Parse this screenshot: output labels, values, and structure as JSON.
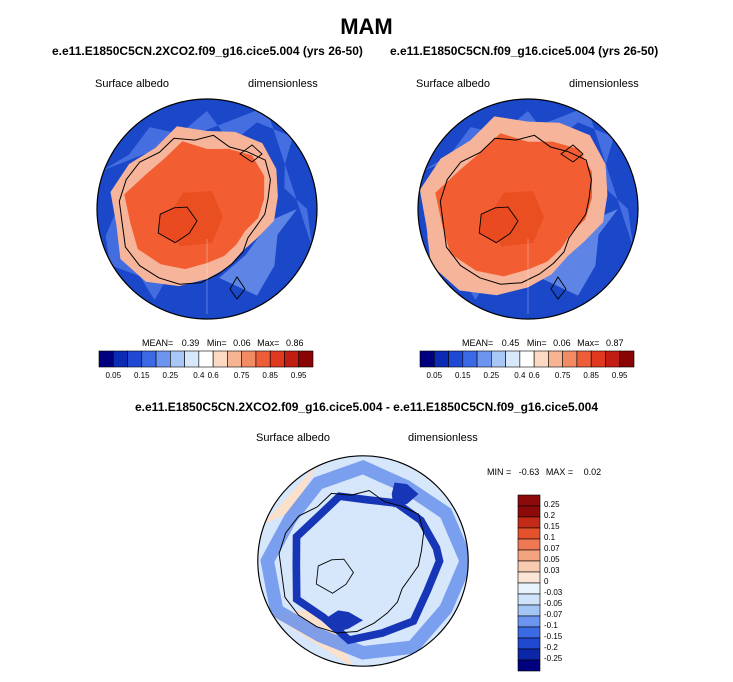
{
  "figure": {
    "title": "MAM",
    "diff_title": "e.e11.E1850C5CN.2XCO2.f09_g16.cice5.004 - e.e11.E1850C5CN.f09_g16.cice5.004"
  },
  "colors": {
    "hbar": [
      "#00007f",
      "#0b2bb5",
      "#1f49d5",
      "#3c6ae6",
      "#6d94ef",
      "#a8c6f6",
      "#d7e8fb",
      "#ffffff",
      "#fbd9c2",
      "#f7b493",
      "#f28b64",
      "#ec5d38",
      "#e0391f",
      "#c11d12",
      "#880405"
    ],
    "vbar": [
      "#00007f",
      "#0b27a8",
      "#1f47d0",
      "#3a6ae4",
      "#6b95ef",
      "#a4c6f5",
      "#cfe4fa",
      "#e8f2fd",
      "#fbe5d6",
      "#f8cbb1",
      "#f4a37f",
      "#ee7853",
      "#e4522c",
      "#c32a17",
      "#8c0a0a"
    ],
    "ocean": "#1b47c9",
    "ice": "#f25e32",
    "land_blue": "#4a73e3",
    "diff_bg": "#d6e6fb",
    "diff_dark": "#1636b7",
    "diff_mid": "#6a92ec",
    "diff_pos": "#fbe0cc"
  },
  "chart_data": [
    {
      "type": "heatmap",
      "panel": "left",
      "projection": "north-polar-stereographic",
      "title": "e.e11.E1850C5CN.2XCO2.f09_g16.cice5.004 (yrs 26-50)",
      "variable": "Surface albedo",
      "units": "dimensionless",
      "stats": {
        "mean_label": "MEAN=",
        "mean": "0.39",
        "min_label": "Min=",
        "min": "0.06",
        "max_label": "Max=",
        "max": "0.86"
      },
      "colorbar_ticks": [
        "0.05",
        "0.15",
        "0.25",
        "0.4",
        "0.6",
        "0.75",
        "0.85",
        "0.95"
      ]
    },
    {
      "type": "heatmap",
      "panel": "right",
      "projection": "north-polar-stereographic",
      "title": "e.e11.E1850C5CN.f09_g16.cice5.004 (yrs 26-50)",
      "variable": "Surface albedo",
      "units": "dimensionless",
      "stats": {
        "mean_label": "MEAN=",
        "mean": "0.45",
        "min_label": "Min=",
        "min": "0.06",
        "max_label": "Max=",
        "max": "0.87"
      },
      "colorbar_ticks": [
        "0.05",
        "0.15",
        "0.25",
        "0.4",
        "0.6",
        "0.75",
        "0.85",
        "0.95"
      ]
    },
    {
      "type": "heatmap",
      "panel": "difference",
      "projection": "north-polar-stereographic",
      "variable": "Surface albedo",
      "units": "dimensionless",
      "stats": {
        "min_label": "MIN =",
        "min": "-0.63",
        "max_label": "MAX =",
        "max": "0.02"
      },
      "colorbar_ticks": [
        "0.25",
        "0.2",
        "0.15",
        "0.1",
        "0.07",
        "0.05",
        "0.03",
        "0",
        "-0.03",
        "-0.05",
        "-0.07",
        "-0.1",
        "-0.15",
        "-0.2",
        "-0.25"
      ]
    }
  ]
}
